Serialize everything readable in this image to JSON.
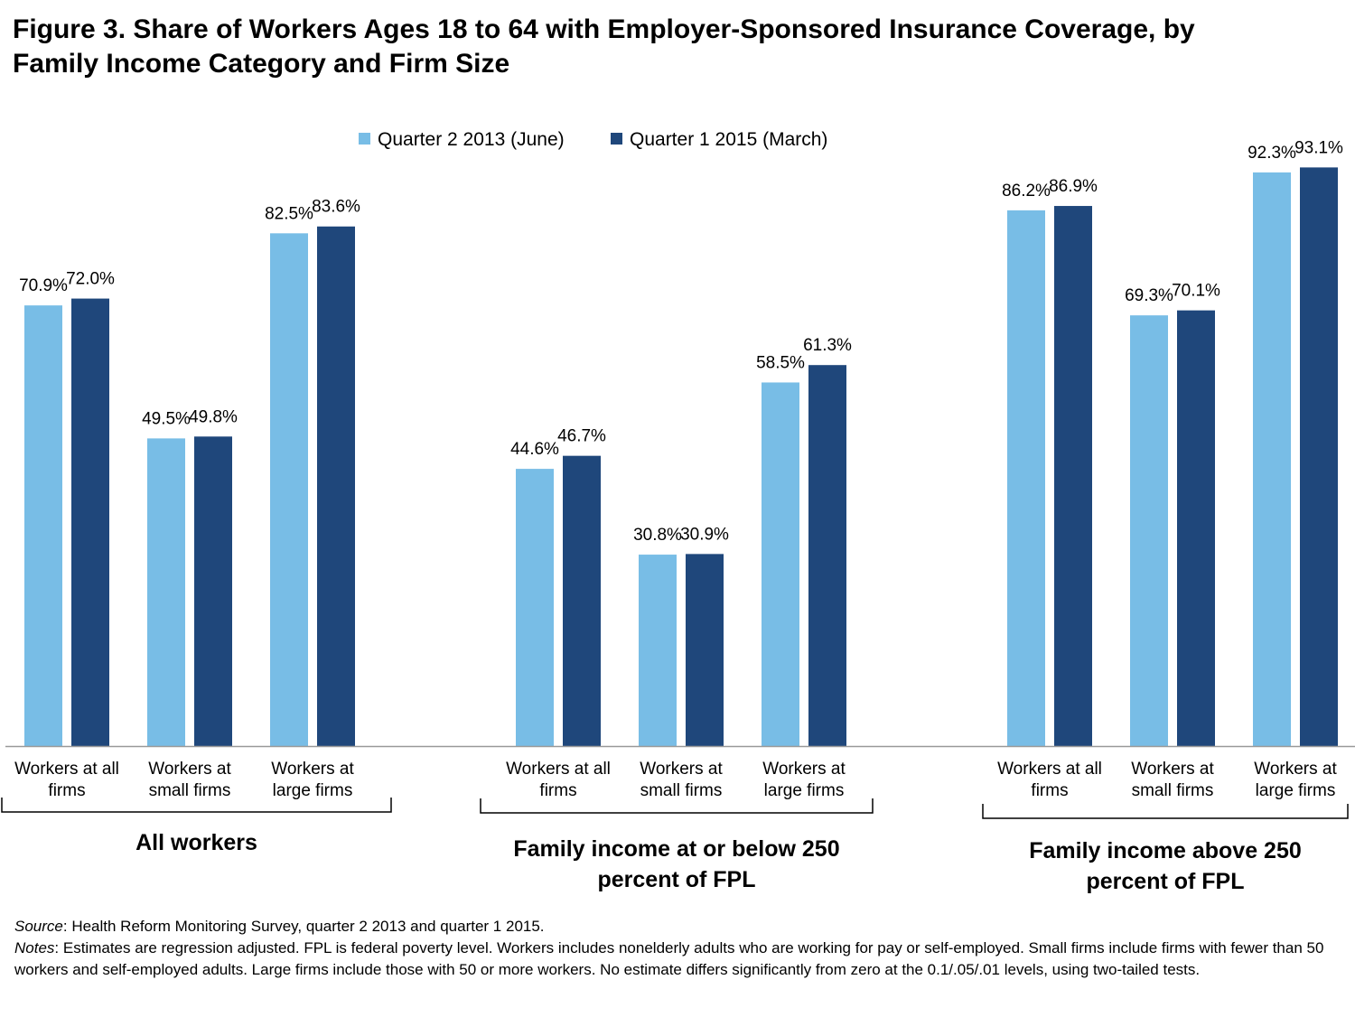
{
  "title": {
    "line1": "Figure 3. Share of Workers Ages 18 to 64 with Employer-Sponsored Insurance Coverage, by",
    "line2": "Family Income Category and Firm Size"
  },
  "colors": {
    "series1": "#78bde6",
    "series2": "#1f477b",
    "axis": "#999999",
    "bracket": "#000000"
  },
  "chart_data": {
    "type": "bar",
    "ylim": [
      0,
      100
    ],
    "grid": false,
    "legend_position": "top-center",
    "series": [
      {
        "name": "Quarter 2 2013 (June)"
      },
      {
        "name": "Quarter 1 2015 (March)"
      }
    ],
    "groups": [
      {
        "label_lines": [
          "All workers"
        ],
        "categories": [
          {
            "label_lines": [
              "Workers at all",
              "firms"
            ],
            "values": [
              70.9,
              72.0
            ],
            "labels": [
              "70.9%",
              "72.0%"
            ]
          },
          {
            "label_lines": [
              "Workers at",
              "small firms"
            ],
            "values": [
              49.5,
              49.8
            ],
            "labels": [
              "49.5%",
              "49.8%"
            ]
          },
          {
            "label_lines": [
              "Workers at",
              "large firms"
            ],
            "values": [
              82.5,
              83.6
            ],
            "labels": [
              "82.5%",
              "83.6%"
            ]
          }
        ]
      },
      {
        "label_lines": [
          "Family income at or below 250",
          "percent of FPL"
        ],
        "categories": [
          {
            "label_lines": [
              "Workers at all",
              "firms"
            ],
            "values": [
              44.6,
              46.7
            ],
            "labels": [
              "44.6%",
              "46.7%"
            ]
          },
          {
            "label_lines": [
              "Workers at",
              "small firms"
            ],
            "values": [
              30.8,
              30.9
            ],
            "labels": [
              "30.8%",
              "30.9%"
            ]
          },
          {
            "label_lines": [
              "Workers at",
              "large firms"
            ],
            "values": [
              58.5,
              61.3
            ],
            "labels": [
              "58.5%",
              "61.3%"
            ]
          }
        ]
      },
      {
        "label_lines": [
          "Family income above 250",
          "percent of FPL"
        ],
        "categories": [
          {
            "label_lines": [
              "Workers at all",
              "firms"
            ],
            "values": [
              86.2,
              86.9
            ],
            "labels": [
              "86.2%",
              "86.9%"
            ]
          },
          {
            "label_lines": [
              "Workers at",
              "small firms"
            ],
            "values": [
              69.3,
              70.1
            ],
            "labels": [
              "69.3%",
              "70.1%"
            ]
          },
          {
            "label_lines": [
              "Workers at",
              "large firms"
            ],
            "values": [
              92.3,
              93.1
            ],
            "labels": [
              "92.3%",
              "93.1%"
            ]
          }
        ]
      }
    ]
  },
  "footer": {
    "source_label": "Source",
    "source_text": ": Health Reform Monitoring Survey, quarter 2 2013 and quarter 1 2015.",
    "notes_label": "Notes",
    "notes_text": ": Estimates are regression adjusted. FPL is federal poverty level.  Workers includes nonelderly adults who are working for pay or self-employed. Small firms include firms with fewer than 50 workers and self-employed adults. Large firms include those with 50 or more workers. No estimate differs significantly from zero at the 0.1/.05/.01 levels, using two-tailed tests."
  }
}
